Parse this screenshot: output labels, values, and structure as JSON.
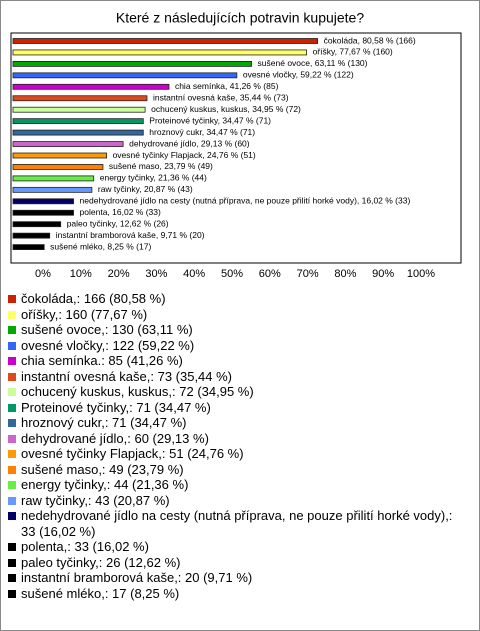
{
  "chart_data": {
    "type": "hbar",
    "title": "Které z následujících potravin kupujete?",
    "categories": [
      "čokoláda",
      "oříšky",
      "sušené ovoce",
      "ovesné vločky",
      "chia semínka",
      "instantní ovesná kaše",
      "ochucený kuskus, kuskus",
      "Proteinové tyčinky",
      "hroznový cukr",
      "dehydrované jídlo",
      "ovesné tyčinky Flapjack",
      "sušené maso",
      "energy tyčinky",
      "raw tyčinky",
      "nedehydrované jídlo na cesty (nutná příprava, ne pouze přilití horké vody)",
      "polenta",
      "paleo tyčinky",
      "instantní bramborová kaše",
      "sušené mléko"
    ],
    "values": [
      80.58,
      77.67,
      63.11,
      59.22,
      41.26,
      35.44,
      34.95,
      34.47,
      34.47,
      29.13,
      24.76,
      23.79,
      21.36,
      20.87,
      16.02,
      16.02,
      12.62,
      9.71,
      8.25
    ],
    "value_labels": [
      "čokoláda, 80,58 % (166)",
      "oříšky, 77,67 % (160)",
      "sušené ovoce, 63,11 % (130)",
      "ovesné vločky, 59,22 % (122)",
      "chia semínka, 41,26 % (85)",
      "instantní ovesná kaše, 35,44 % (73)",
      "ochucený kuskus, kuskus, 34,95 % (72)",
      "Proteinové tyčinky, 34,47 % (71)",
      "hroznový cukr, 34,47 % (71)",
      "dehydrované jídlo, 29,13 % (60)",
      "ovesné tyčinky Flapjack, 24,76 % (51)",
      "sušené maso, 23,79 % (49)",
      "energy tyčinky, 21,36 % (44)",
      "raw tyčinky, 20,87 % (43)",
      "nedehydrované jídlo na cesty (nutná příprava, ne pouze přilití horké vody), 16,02 % (33)",
      "polenta, 16,02 % (33)",
      "paleo tyčinky, 12,62 % (26)",
      "instantní bramborová kaše, 9,71 % (20)",
      "sušené mléko, 8,25 % (17)"
    ],
    "legend_labels": [
      "čokoláda,: 166 (80,58 %)",
      "oříšky,: 160 (77,67 %)",
      "sušené ovoce,: 130 (63,11 %)",
      "ovesné vločky,: 122 (59,22 %)",
      "chia semínka.: 85 (41,26 %)",
      "instantní ovesná kaše,: 73 (35,44 %)",
      "ochucený kuskus, kuskus,: 72 (34,95 %)",
      "Proteinové tyčinky,: 71 (34,47 %)",
      "hroznový cukr,: 71 (34,47 %)",
      "dehydrované jídlo,: 60 (29,13 %)",
      "ovesné tyčinky Flapjack,: 51 (24,76 %)",
      "sušené maso,: 49 (23,79 %)",
      "energy tyčinky,: 44 (21,36 %)",
      "raw tyčinky,: 43 (20,87 %)",
      "nedehydrované jídlo na cesty (nutná příprava, ne pouze přilití horké vody),: 33 (16,02 %)",
      "polenta,: 33 (16,02 %)",
      "paleo tyčinky,: 26 (12,62 %)",
      "instantní bramborová kaše,: 20 (9,71 %)",
      "sušené mléko,: 17 (8,25 %)"
    ],
    "colors": [
      "#cc2200",
      "#ffff66",
      "#00aa00",
      "#3366ff",
      "#cc00cc",
      "#e04a1a",
      "#ccff99",
      "#009966",
      "#336699",
      "#cc66cc",
      "#ff9900",
      "#ff8000",
      "#66ee44",
      "#6699ff",
      "#000066",
      "#000000",
      "#000000",
      "#000000",
      "#000000"
    ],
    "xlim": [
      0,
      100
    ],
    "xticks": [
      {
        "value": 0,
        "label": "0%"
      },
      {
        "value": 10,
        "label": "10%"
      },
      {
        "value": 20,
        "label": "20%"
      },
      {
        "value": 30,
        "label": "30%"
      },
      {
        "value": 40,
        "label": "40%"
      },
      {
        "value": 50,
        "label": "50%"
      },
      {
        "value": 60,
        "label": "60%"
      },
      {
        "value": 70,
        "label": "70%"
      },
      {
        "value": 80,
        "label": "80%"
      },
      {
        "value": 90,
        "label": "90%"
      },
      {
        "value": 100,
        "label": "100%"
      }
    ]
  }
}
